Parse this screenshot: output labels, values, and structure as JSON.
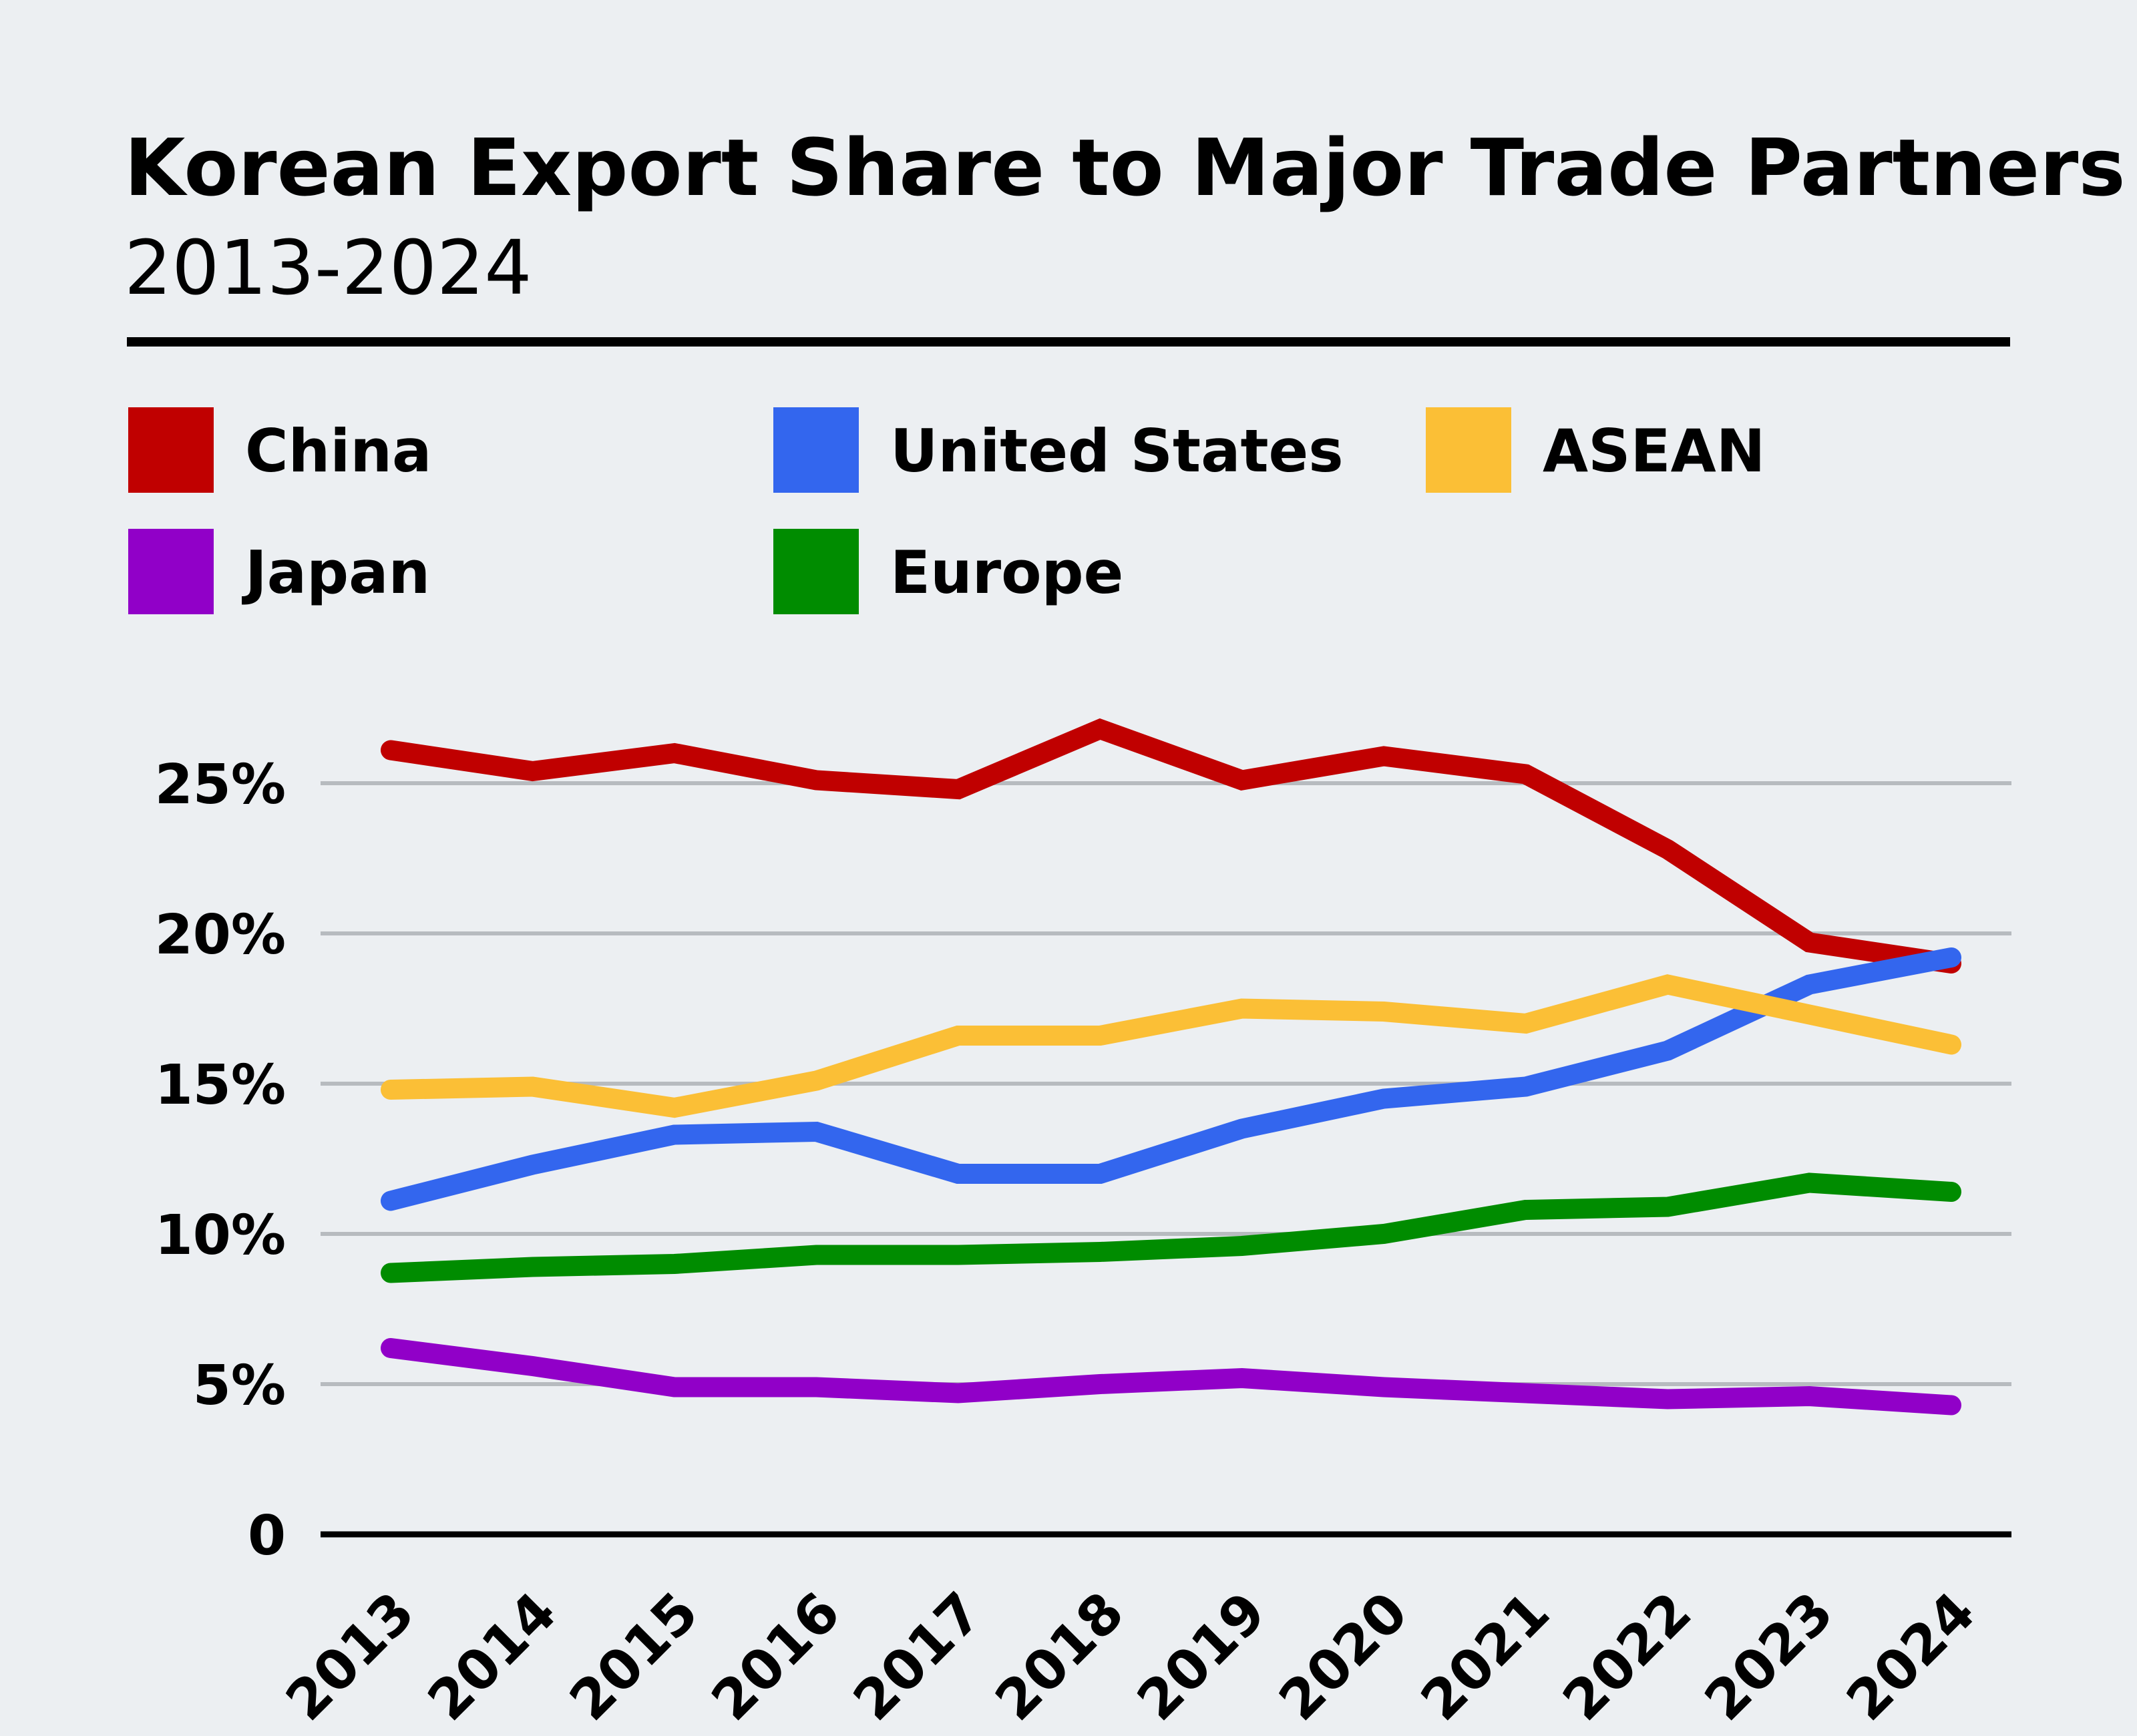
{
  "chart_data": {
    "type": "line",
    "title": "Korean Export Share to Major Trade Partners",
    "subtitle": "2013-2024",
    "x": [
      "2013",
      "2014",
      "2015",
      "2016",
      "2017",
      "2018",
      "2019",
      "2020",
      "2021",
      "2022",
      "2023",
      "2024"
    ],
    "y_ticks": [
      "0",
      "5%",
      "10%",
      "15%",
      "20%",
      "25%"
    ],
    "ylim": [
      0,
      26
    ],
    "grid": true,
    "legend_position": "top",
    "series": [
      {
        "name": "China",
        "color": "#c00000",
        "values": [
          26.1,
          25.4,
          26.0,
          25.1,
          24.8,
          26.8,
          25.1,
          25.9,
          25.3,
          22.8,
          19.7,
          19.0
        ]
      },
      {
        "name": "United States",
        "color": "#3366ee",
        "values": [
          11.1,
          12.3,
          13.3,
          13.4,
          12.0,
          12.0,
          13.5,
          14.5,
          14.9,
          16.1,
          18.3,
          19.2
        ]
      },
      {
        "name": "ASEAN",
        "color": "#fbbf36",
        "values": [
          14.8,
          14.9,
          14.2,
          15.1,
          16.6,
          16.6,
          17.5,
          17.4,
          17.0,
          18.3,
          17.3,
          16.3
        ]
      },
      {
        "name": "Japan",
        "color": "#9100c8",
        "values": [
          6.2,
          5.6,
          4.9,
          4.9,
          4.7,
          5.0,
          5.2,
          4.9,
          4.7,
          4.5,
          4.6,
          4.3
        ]
      },
      {
        "name": "Europe",
        "color": "#008c00",
        "values": [
          8.7,
          8.9,
          9.0,
          9.3,
          9.3,
          9.4,
          9.6,
          10.0,
          10.8,
          10.9,
          11.7,
          11.4
        ]
      }
    ]
  }
}
